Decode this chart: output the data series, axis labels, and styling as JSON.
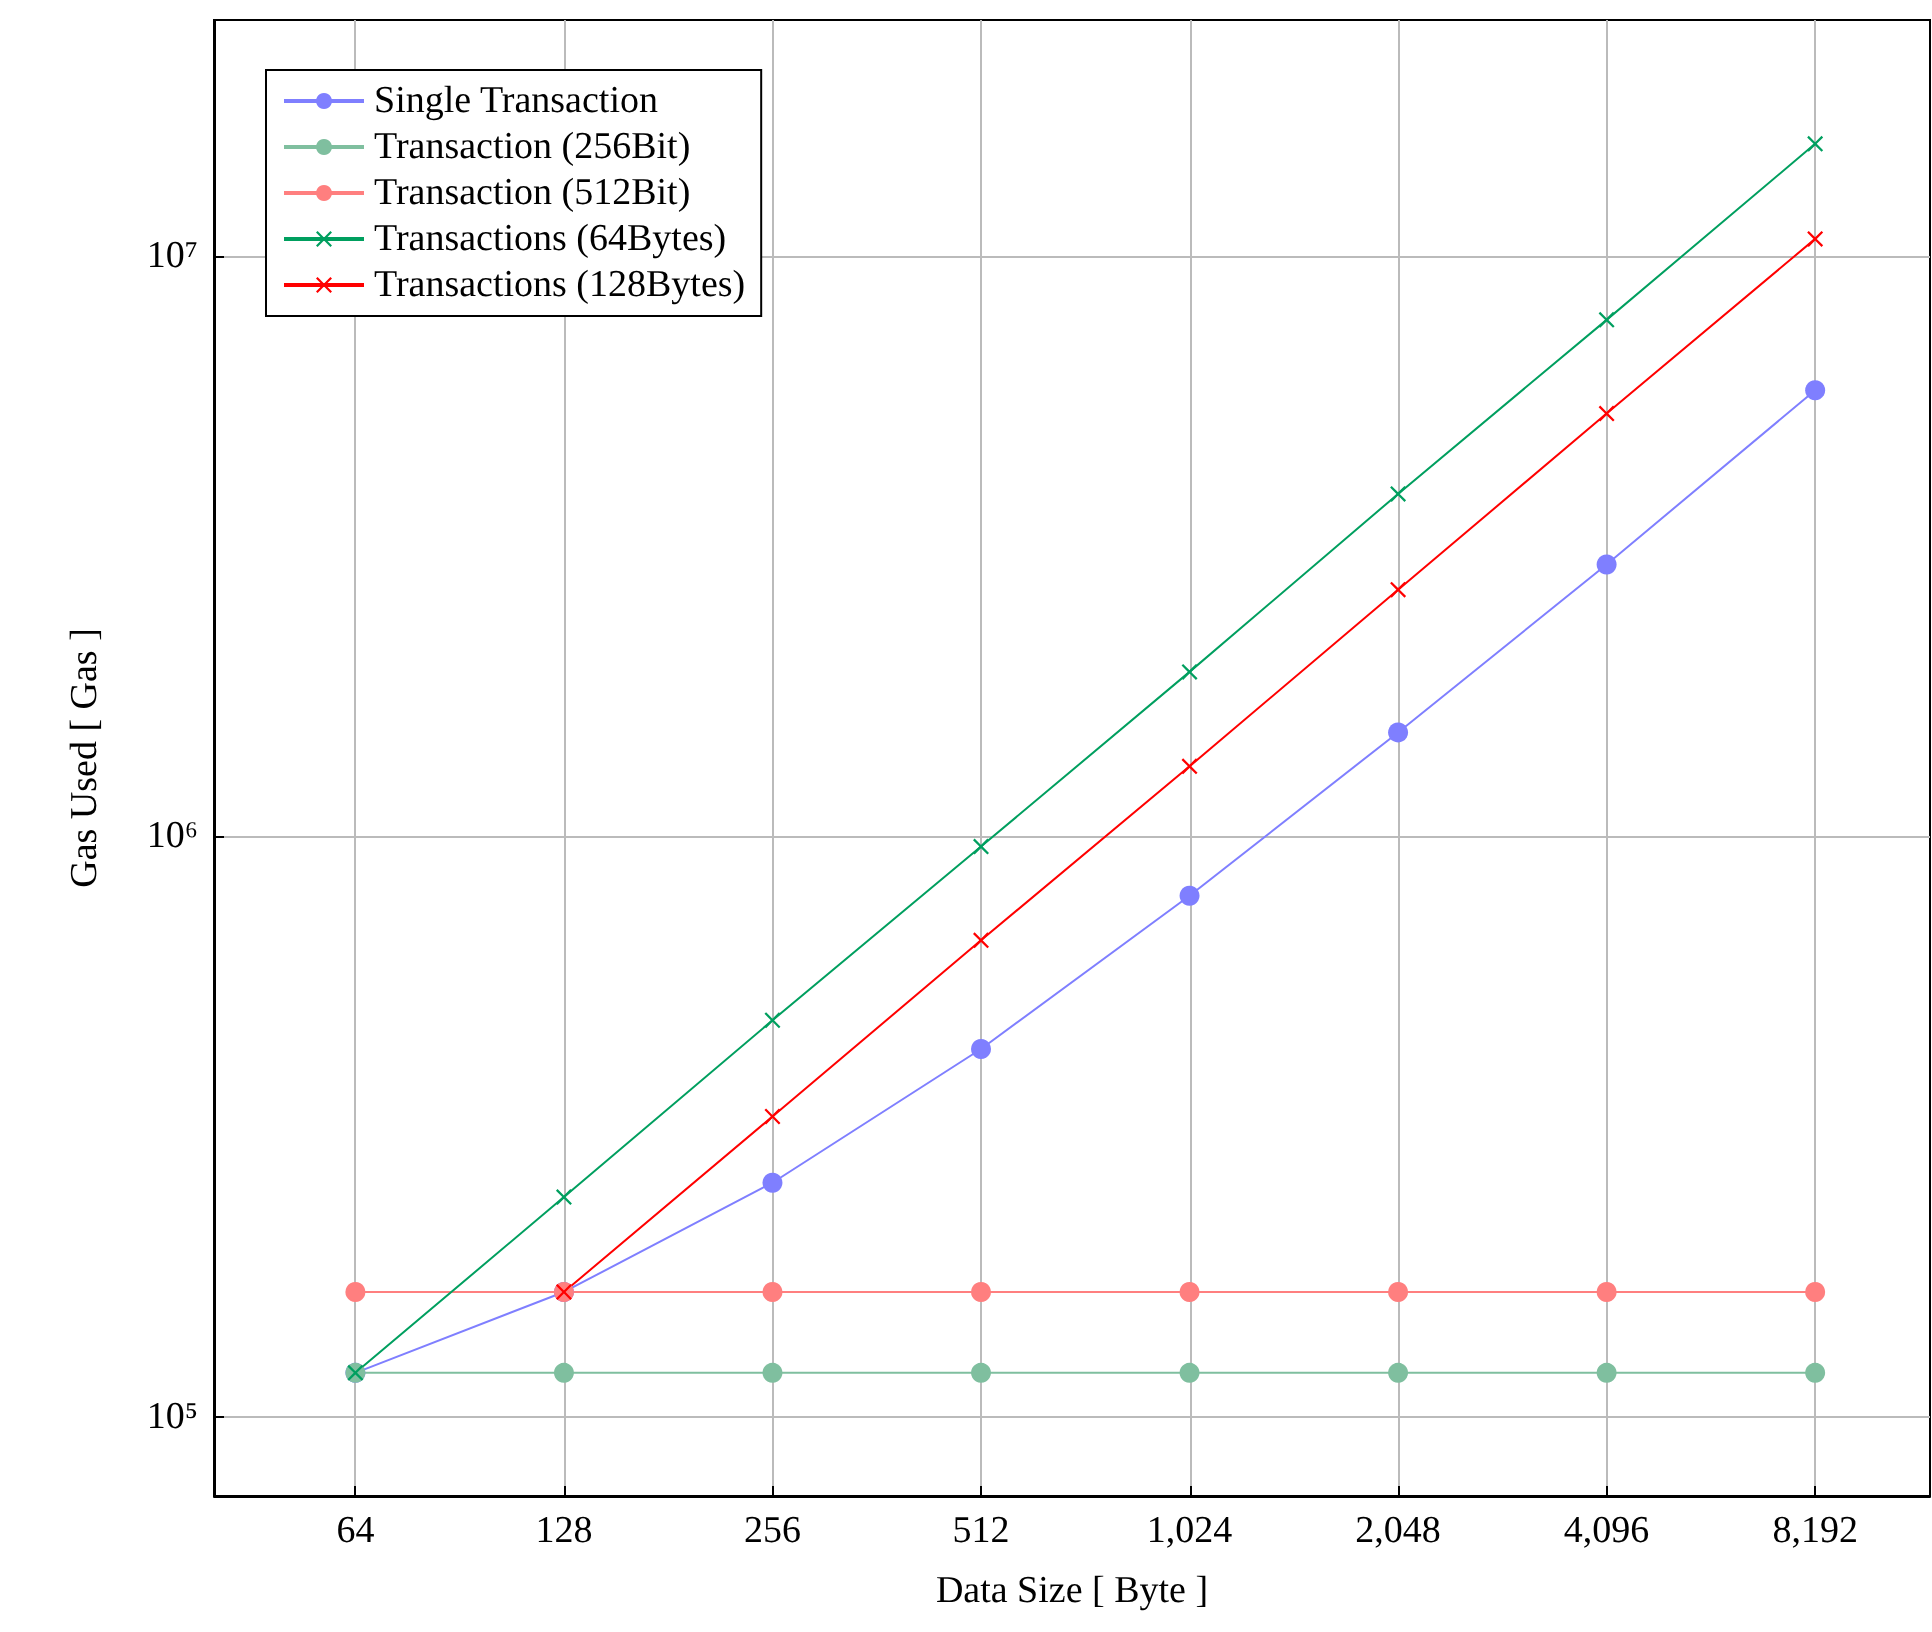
{
  "chart_data": {
    "type": "line",
    "xlabel": "Data Size [ Byte ]",
    "ylabel": "Gas Used [ Gas ]",
    "log": "xy",
    "grid": true,
    "legend": "top left",
    "xlim": [
      40,
      12000
    ],
    "xticks": [
      64,
      128,
      256,
      512,
      {
        "value": 1024,
        "label": "1,024"
      },
      {
        "value": 2048,
        "label": "2,048"
      },
      {
        "value": 4096,
        "label": "4,096"
      },
      {
        "value": 8192,
        "label": "8,192"
      }
    ],
    "ylim": [
      73000,
      25500000
    ],
    "yticks": [
      {
        "value": 100000,
        "label": "10⁵"
      },
      {
        "value": 1000000,
        "label": "10⁶"
      },
      {
        "value": 10000000,
        "label": "10⁷"
      }
    ],
    "x": [
      64,
      128,
      256,
      512,
      1024,
      2048,
      4096,
      8192
    ],
    "series": [
      {
        "name": "Single Transaction",
        "color": "#7f7fff",
        "marker": "circle",
        "values": [
          119000,
          164000,
          253000,
          430000,
          790000,
          1510000,
          2940000,
          5870000
        ]
      },
      {
        "name": "Transaction (256Bit)",
        "color": "#7fbf9f",
        "marker": "circle",
        "values": [
          119000,
          119000,
          119000,
          119000,
          119000,
          119000,
          119000,
          119000
        ]
      },
      {
        "name": "Transaction (512Bit)",
        "color": "#ff7f7f",
        "marker": "circle",
        "values": [
          164000,
          164000,
          164000,
          164000,
          164000,
          164000,
          164000,
          164000
        ]
      },
      {
        "name": "Transactions (64Bytes)",
        "color": "#009f5f",
        "marker": "cross",
        "values": [
          119000,
          239000,
          482000,
          960000,
          1920000,
          3890000,
          7760000,
          15600000
        ]
      },
      {
        "name": "Transactions (128Bytes)",
        "color": "#ff0000",
        "marker": "cross",
        "values": [
          null,
          164000,
          329000,
          662000,
          1320000,
          2660000,
          5350000,
          10700000
        ]
      }
    ]
  }
}
